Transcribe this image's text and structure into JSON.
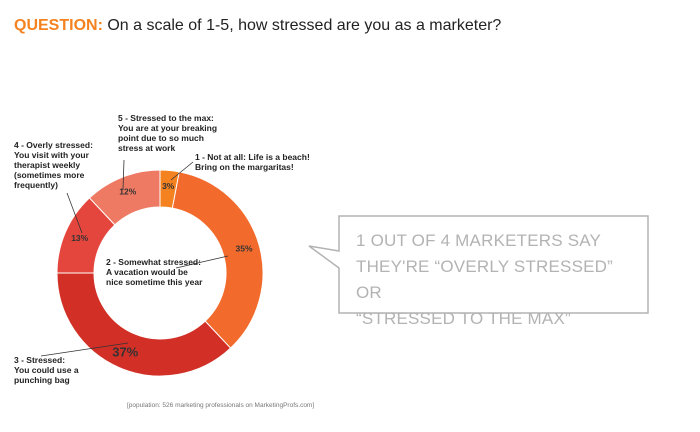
{
  "header": {
    "label": "QUESTION:",
    "question": "On a scale of 1-5, how stressed are you as a marketer?"
  },
  "chart_data": {
    "type": "pie",
    "donut": true,
    "categories": [
      "1 - Not at all: Life is a beach! Bring on the margaritas!",
      "2 - Somewhat stressed: A vacation would be nice sometime this year",
      "3 - Stressed: You could use a punching bag",
      "4 - Overly stressed: You visit with your therapist weekly (sometimes more frequently)",
      "5 - Stressed to the max: You are at your breaking point due to so much stress at work"
    ],
    "values": [
      3,
      35,
      37,
      13,
      12
    ],
    "value_labels": [
      "3%",
      "35%",
      "37%",
      "13%",
      "12%"
    ],
    "colors": [
      "#f58220",
      "#f26a2c",
      "#d22f27",
      "#e4463d",
      "#ee7a63"
    ],
    "labels": {
      "s1": {
        "line1": "1 - Not at all: Life is a beach!",
        "line2": "Bring on the margaritas!"
      },
      "s2": {
        "line1": "2 - Somewhat stressed:",
        "line2": "A vacation would be",
        "line3": "nice sometime this year"
      },
      "s3": {
        "line1": "3 - Stressed:",
        "line2": "You could use a",
        "line3": "punching bag"
      },
      "s4": {
        "line1": "4 - Overly stressed:",
        "line2": "You visit with your",
        "line3": "therapist weekly",
        "line4": "(sometimes more",
        "line5": "frequently)"
      },
      "s5": {
        "line1": "5 - Stressed to the max:",
        "line2": "You are at your breaking",
        "line3": "point due to so much",
        "line4": "stress at work"
      }
    }
  },
  "callout": {
    "line1": "1 OUT OF 4 MARKETERS SAY",
    "line2": "THEY'RE “OVERLY STRESSED” OR",
    "line3": "“STRESSED TO THE MAX”"
  },
  "footnote": "[population: 526 marketing professionals on MarketingProfs.com]"
}
